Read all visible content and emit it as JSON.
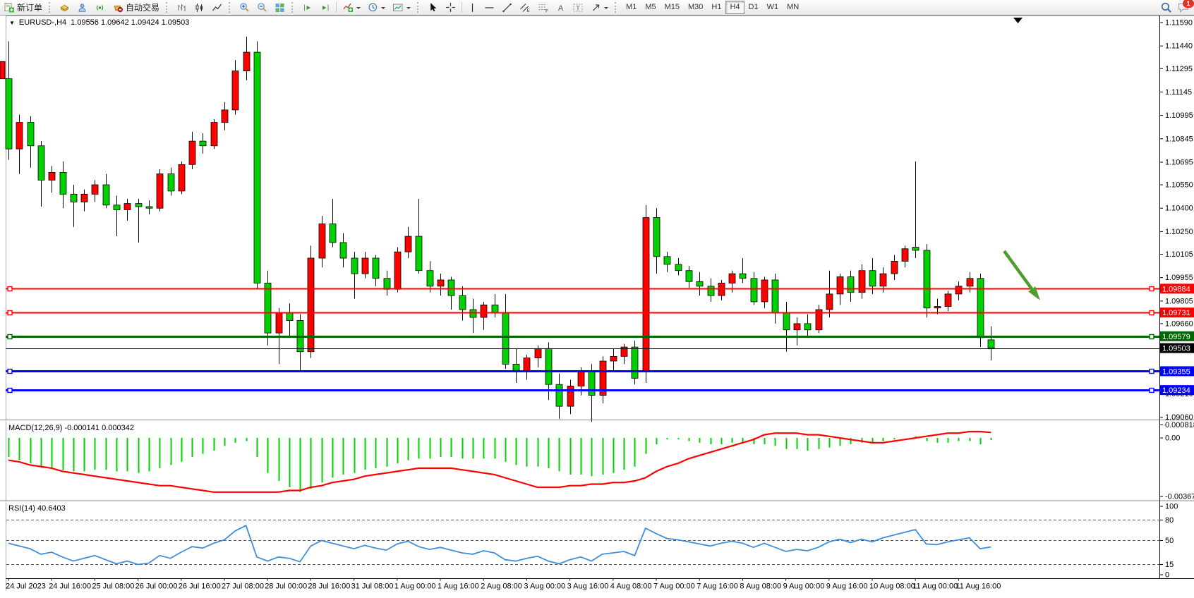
{
  "toolbar": {
    "new_order_label": "新订单",
    "auto_trading_label": "自动交易",
    "timeframes": [
      "M1",
      "M5",
      "M15",
      "M30",
      "H1",
      "H4",
      "D1",
      "W1",
      "MN"
    ],
    "active_timeframe": "H4",
    "notification_count": "1",
    "glyphs": {
      "channel": "E",
      "fibonacci": "F",
      "text": "A",
      "label": "T"
    }
  },
  "chart": {
    "symbol_title": "EURUSD-,H4",
    "ohlc_title": "1.09556 1.09642 1.09424 1.09503",
    "macd_label": "MACD(12,26,9) -0.000141 0.000342",
    "rsi_label": "RSI(14) 40.6403"
  },
  "chart_data": {
    "type": "candlestick",
    "symbol": "EURUSD-",
    "timeframe": "H4",
    "current_bar": {
      "open": 1.09556,
      "high": 1.09642,
      "low": 1.09424,
      "close": 1.09503
    },
    "colors": {
      "up": "#ff0000",
      "down": "#00d200",
      "wick": "#000000",
      "macd_hist": "#00d200",
      "macd_signal": "#ff0000",
      "rsi_line": "#3f8ede",
      "line_red": "#ff0000",
      "line_green": "#006600",
      "line_black": "#000000",
      "line_blue": "#0000ff",
      "arrow": "#4e9e2e"
    },
    "price_axis_ticks": [
      1.1159,
      1.1144,
      1.11295,
      1.11145,
      1.10995,
      1.10845,
      1.10695,
      1.1055,
      1.104,
      1.1025,
      1.10105,
      1.09955,
      1.09805,
      1.0966,
      1.0921,
      1.0906
    ],
    "price_lines": [
      {
        "price": 1.09884,
        "label": "1.09884",
        "color": "#ff0000",
        "width": 2,
        "handles": true
      },
      {
        "price": 1.09731,
        "label": "1.09731",
        "color": "#ff0000",
        "width": 2,
        "handles": true
      },
      {
        "price": 1.09579,
        "label": "1.09579",
        "color": "#006600",
        "width": 3,
        "handles": true
      },
      {
        "price": 1.09503,
        "label": "1.09503",
        "color": "#000000",
        "width": 1,
        "handles": false
      },
      {
        "price": 1.09355,
        "label": "1.09355",
        "color": "#0000ff",
        "width": 3,
        "handles": true
      },
      {
        "price": 1.09234,
        "label": "1.09234",
        "color": "#0000ff",
        "width": 3,
        "handles": true
      }
    ],
    "time_labels": [
      "24 Jul 2023",
      "24 Jul 16:00",
      "25 Jul 08:00",
      "26 Jul 00:00",
      "26 Jul 16:00",
      "27 Jul 08:00",
      "28 Jul 00:00",
      "28 Jul 16:00",
      "31 Jul 08:00",
      "1 Aug 00:00",
      "1 Aug 16:00",
      "2 Aug 08:00",
      "3 Aug 00:00",
      "3 Aug 16:00",
      "4 Aug 08:00",
      "7 Aug 00:00",
      "7 Aug 16:00",
      "8 Aug 08:00",
      "9 Aug 00:00",
      "9 Aug 16:00",
      "10 Aug 08:00",
      "11 Aug 00:00",
      "11 Aug 16:00"
    ],
    "time_label_every": 4,
    "candles": [
      [
        1.1123,
        1.1147,
        1.1071,
        1.1078
      ],
      [
        1.1078,
        1.11,
        1.1062,
        1.1095
      ],
      [
        1.1095,
        1.1099,
        1.1066,
        1.108
      ],
      [
        1.108,
        1.1083,
        1.1041,
        1.1058
      ],
      [
        1.1058,
        1.1067,
        1.105,
        1.1063
      ],
      [
        1.1063,
        1.107,
        1.104,
        1.1049
      ],
      [
        1.1049,
        1.1055,
        1.1028,
        1.1044
      ],
      [
        1.1044,
        1.1052,
        1.1038,
        1.1049
      ],
      [
        1.1049,
        1.1058,
        1.1044,
        1.1055
      ],
      [
        1.1055,
        1.1062,
        1.104,
        1.1042
      ],
      [
        1.1042,
        1.1048,
        1.1022,
        1.1039
      ],
      [
        1.1039,
        1.1046,
        1.1032,
        1.1043
      ],
      [
        1.1043,
        1.1046,
        1.1018,
        1.1041
      ],
      [
        1.1041,
        1.1045,
        1.1036,
        1.104
      ],
      [
        1.104,
        1.1065,
        1.1038,
        1.1062
      ],
      [
        1.1062,
        1.1066,
        1.1048,
        1.1051
      ],
      [
        1.1051,
        1.107,
        1.1049,
        1.1068
      ],
      [
        1.1068,
        1.1089,
        1.1065,
        1.1083
      ],
      [
        1.1083,
        1.1088,
        1.1075,
        1.108
      ],
      [
        1.108,
        1.1097,
        1.1078,
        1.1095
      ],
      [
        1.1095,
        1.1108,
        1.109,
        1.1103
      ],
      [
        1.1103,
        1.1135,
        1.11,
        1.1128
      ],
      [
        1.1128,
        1.115,
        1.1122,
        1.114
      ],
      [
        1.114,
        1.1147,
        1.0988,
        1.0992
      ],
      [
        1.0992,
        1.1,
        1.0952,
        1.096
      ],
      [
        1.096,
        1.0976,
        1.094,
        1.0973
      ],
      [
        1.0973,
        1.0979,
        1.0958,
        1.0968
      ],
      [
        1.0968,
        1.0972,
        1.0935,
        1.0948
      ],
      [
        1.0948,
        1.1016,
        1.0944,
        1.1008
      ],
      [
        1.1008,
        1.1035,
        1.1002,
        1.103
      ],
      [
        1.103,
        1.1046,
        1.1015,
        1.1018
      ],
      [
        1.1018,
        1.1024,
        1.1002,
        1.1008
      ],
      [
        1.1008,
        1.1012,
        1.0982,
        1.0998
      ],
      [
        1.0998,
        1.1012,
        1.0995,
        1.1008
      ],
      [
        1.1008,
        1.101,
        1.099,
        1.0995
      ],
      [
        1.0995,
        1.1,
        1.0984,
        1.0988
      ],
      [
        1.0988,
        1.1015,
        1.0986,
        1.1012
      ],
      [
        1.1012,
        1.1028,
        1.1008,
        1.1022
      ],
      [
        1.1022,
        1.1046,
        1.0998,
        1.1
      ],
      [
        1.1,
        1.1006,
        1.0986,
        1.099
      ],
      [
        1.099,
        1.0998,
        1.0984,
        1.0994
      ],
      [
        1.0994,
        1.0996,
        1.0975,
        1.0984
      ],
      [
        1.0984,
        1.099,
        1.0968,
        1.0975
      ],
      [
        1.0975,
        1.0982,
        1.096,
        1.097
      ],
      [
        1.097,
        1.098,
        1.0962,
        1.0978
      ],
      [
        1.0978,
        1.0985,
        1.097,
        1.0973
      ],
      [
        1.0973,
        1.0985,
        1.0937,
        1.094
      ],
      [
        1.094,
        1.095,
        1.0928,
        1.0936
      ],
      [
        1.0936,
        1.0946,
        1.093,
        1.0944
      ],
      [
        1.0944,
        1.0952,
        1.0938,
        1.095
      ],
      [
        1.095,
        1.0954,
        1.0917,
        1.0927
      ],
      [
        1.0927,
        1.0934,
        1.0905,
        1.0913
      ],
      [
        1.0913,
        1.093,
        1.0908,
        1.0926
      ],
      [
        1.0926,
        1.0938,
        1.092,
        1.0935
      ],
      [
        1.0935,
        1.094,
        1.0903,
        1.092
      ],
      [
        1.092,
        1.0945,
        1.0915,
        1.0942
      ],
      [
        1.0942,
        1.095,
        1.0936,
        1.0945
      ],
      [
        1.0945,
        1.0953,
        1.094,
        1.0951
      ],
      [
        1.0951,
        1.0955,
        1.0927,
        1.0931
      ],
      [
        1.0935,
        1.1042,
        1.0928,
        1.1034
      ],
      [
        1.1034,
        1.104,
        1.0998,
        1.1009
      ],
      [
        1.1009,
        1.1012,
        1.0999,
        1.1004
      ],
      [
        1.1004,
        1.1008,
        1.0997,
        1.1
      ],
      [
        1.1,
        1.1003,
        1.0989,
        1.0993
      ],
      [
        1.0993,
        1.0999,
        1.0984,
        1.099
      ],
      [
        1.099,
        1.0995,
        1.098,
        1.0984
      ],
      [
        1.0984,
        1.0994,
        1.0981,
        1.0992
      ],
      [
        1.0992,
        1.1,
        1.0986,
        1.0998
      ],
      [
        1.0998,
        1.1008,
        1.0992,
        1.0995
      ],
      [
        1.0995,
        1.0999,
        1.0978,
        1.098
      ],
      [
        1.098,
        1.0996,
        1.0976,
        1.0994
      ],
      [
        1.0994,
        1.0998,
        1.0966,
        1.0973
      ],
      [
        1.0973,
        1.098,
        1.0948,
        1.0962
      ],
      [
        1.0962,
        1.097,
        1.0952,
        1.0966
      ],
      [
        1.0966,
        1.0972,
        1.0958,
        1.0962
      ],
      [
        1.0962,
        1.0978,
        1.096,
        1.0975
      ],
      [
        1.0975,
        1.1,
        1.097,
        1.0985
      ],
      [
        1.0985,
        1.0998,
        1.0978,
        1.0996
      ],
      [
        1.0996,
        1.1,
        1.098,
        1.0986
      ],
      [
        1.0986,
        1.1004,
        1.0982,
        1.1
      ],
      [
        1.1,
        1.1008,
        1.0985,
        1.099
      ],
      [
        1.099,
        1.1002,
        1.0986,
        1.0998
      ],
      [
        1.0998,
        1.101,
        1.0994,
        1.1006
      ],
      [
        1.1006,
        1.1016,
        1.1002,
        1.1014
      ],
      [
        1.1015,
        1.107,
        1.1008,
        1.1013
      ],
      [
        1.1013,
        1.1017,
        1.097,
        1.0976
      ],
      [
        1.0976,
        1.0982,
        1.0972,
        1.0977
      ],
      [
        1.0977,
        1.0987,
        1.0974,
        1.0985
      ],
      [
        1.0985,
        1.0993,
        1.0981,
        1.099
      ],
      [
        1.099,
        1.0999,
        1.0986,
        1.0995
      ],
      [
        1.0995,
        1.0998,
        1.0951,
        1.0957
      ],
      [
        1.09556,
        1.09642,
        1.09424,
        1.09503
      ]
    ],
    "macd": {
      "label": "MACD(12,26,9)",
      "value_main": -0.000141,
      "value_signal": 0.000342,
      "scale_ticks": [
        {
          "v": 0.000818,
          "label": "0.000818"
        },
        {
          "v": 0,
          "label": "0.00"
        },
        {
          "v": -0.003677,
          "label": "-0.003677"
        }
      ],
      "hist": [
        -0.0012,
        -0.0014,
        -0.0016,
        -0.0018,
        -0.0019,
        -0.002,
        -0.0021,
        -0.0021,
        -0.002,
        -0.002,
        -0.0021,
        -0.0021,
        -0.0022,
        -0.0021,
        -0.0019,
        -0.0017,
        -0.0015,
        -0.0012,
        -0.001,
        -0.0008,
        -0.0005,
        -0.0003,
        -0.0002,
        -0.0012,
        -0.0022,
        -0.0027,
        -0.0031,
        -0.0034,
        -0.0032,
        -0.0028,
        -0.0025,
        -0.0023,
        -0.0022,
        -0.002,
        -0.0019,
        -0.0018,
        -0.0016,
        -0.0014,
        -0.0013,
        -0.0013,
        -0.0012,
        -0.0012,
        -0.0013,
        -0.0013,
        -0.0013,
        -0.0013,
        -0.0015,
        -0.0017,
        -0.0018,
        -0.0018,
        -0.0019,
        -0.0021,
        -0.0023,
        -0.0023,
        -0.0024,
        -0.0023,
        -0.0022,
        -0.002,
        -0.0018,
        -0.001,
        -0.0004,
        -0.0001,
        -0.0001,
        -0.0002,
        -0.0003,
        -0.0004,
        -0.0004,
        -0.0003,
        -0.0003,
        -0.0004,
        -0.0004,
        -0.0005,
        -0.0007,
        -0.0007,
        -0.0008,
        -0.0007,
        -0.0006,
        -0.0005,
        -0.0004,
        -0.0003,
        -0.0003,
        -0.0002,
        -0.0001,
        0.0,
        0.0001,
        -0.0002,
        -0.0003,
        -0.0003,
        -0.0002,
        -0.0002,
        -0.0004,
        -0.00014
      ],
      "signal": [
        -0.0014,
        -0.0015,
        -0.0017,
        -0.0018,
        -0.0019,
        -0.0021,
        -0.0022,
        -0.0023,
        -0.0024,
        -0.0025,
        -0.0026,
        -0.0027,
        -0.0028,
        -0.0029,
        -0.003,
        -0.003,
        -0.0031,
        -0.0032,
        -0.0033,
        -0.0034,
        -0.0034,
        -0.0034,
        -0.0034,
        -0.0034,
        -0.0034,
        -0.0034,
        -0.0033,
        -0.0033,
        -0.0031,
        -0.003,
        -0.0028,
        -0.0027,
        -0.0026,
        -0.0024,
        -0.0023,
        -0.0022,
        -0.0021,
        -0.002,
        -0.0019,
        -0.0019,
        -0.0019,
        -0.0019,
        -0.002,
        -0.0021,
        -0.0022,
        -0.0023,
        -0.0025,
        -0.0027,
        -0.0029,
        -0.0031,
        -0.0031,
        -0.0031,
        -0.003,
        -0.003,
        -0.0029,
        -0.0029,
        -0.0028,
        -0.0028,
        -0.0027,
        -0.0025,
        -0.0021,
        -0.0018,
        -0.0016,
        -0.0013,
        -0.0011,
        -0.0009,
        -0.0007,
        -0.0005,
        -0.0003,
        -0.0001,
        0.0002,
        0.0003,
        0.0003,
        0.0003,
        0.0002,
        0.0002,
        0.0001,
        0.0,
        -0.0001,
        -0.0002,
        -0.0003,
        -0.0003,
        -0.0002,
        -0.0001,
        0.0,
        0.0001,
        0.0002,
        0.0003,
        0.0003,
        0.0004,
        0.0004,
        0.00034
      ]
    },
    "rsi": {
      "label": "RSI(14)",
      "value": 40.6403,
      "levels": [
        80,
        50,
        15
      ],
      "scale_ticks": [
        100,
        80,
        50,
        15,
        0
      ],
      "values": [
        46,
        42,
        38,
        30,
        33,
        26,
        20,
        24,
        28,
        22,
        16,
        20,
        15,
        17,
        28,
        24,
        33,
        41,
        39,
        46,
        51,
        64,
        72,
        26,
        20,
        26,
        24,
        19,
        42,
        50,
        46,
        42,
        38,
        43,
        39,
        36,
        45,
        49,
        41,
        37,
        40,
        36,
        32,
        30,
        35,
        32,
        22,
        20,
        24,
        27,
        20,
        16,
        22,
        26,
        20,
        30,
        32,
        34,
        28,
        68,
        60,
        53,
        51,
        48,
        45,
        42,
        46,
        49,
        46,
        40,
        46,
        40,
        34,
        37,
        35,
        40,
        48,
        52,
        47,
        52,
        48,
        54,
        58,
        62,
        66,
        45,
        44,
        48,
        51,
        54,
        38,
        40.64
      ]
    },
    "annotation_arrow": {
      "from": [
        1423,
        356
      ],
      "to": [
        1474,
        426
      ],
      "color": "#4e9e2e"
    }
  }
}
